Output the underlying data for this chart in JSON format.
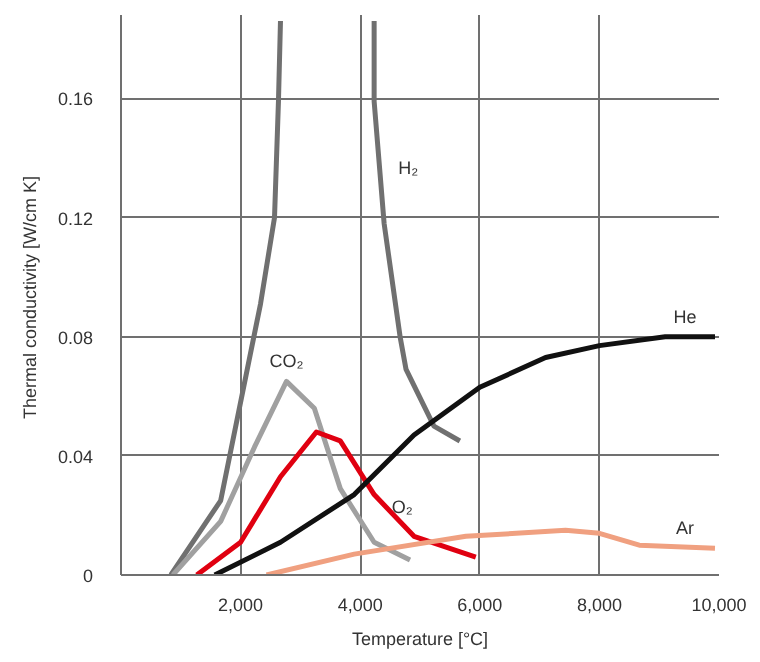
{
  "chart_data": {
    "type": "line",
    "xlabel": "Temperature [°C]",
    "ylabel": "Thermal conductivity  [W/cm K]",
    "xlim": [
      0,
      10000
    ],
    "ylim": [
      0,
      0.188
    ],
    "xticks": [
      {
        "value": 2000,
        "label": "2,000"
      },
      {
        "value": 4000,
        "label": "4,000"
      },
      {
        "value": 6000,
        "label": "6,000"
      },
      {
        "value": 8000,
        "label": "8,000"
      },
      {
        "value": 10000,
        "label": "10,000"
      }
    ],
    "yticks": [
      0,
      0.04,
      0.08,
      0.12,
      0.16
    ],
    "grid": true,
    "line_style": "solid",
    "series": [
      {
        "name": "H₂",
        "color": "#707070",
        "x": [
          833,
          1667,
          2333,
          2567,
          2633,
          2667,
          3400,
          4233,
          4233,
          4400,
          4667,
          4767,
          5233,
          5667
        ],
        "values": [
          0,
          0.025,
          0.091,
          0.12,
          0.159,
          0.186,
          null,
          0.186,
          0.159,
          0.118,
          0.08,
          0.069,
          0.05,
          0.045
        ]
      },
      {
        "name": "CO₂",
        "color": "#a0a0a0",
        "x": [
          867,
          1667,
          2233,
          2767,
          3233,
          3667,
          4233,
          4833
        ],
        "values": [
          0,
          0.018,
          0.043,
          0.065,
          0.056,
          0.029,
          0.011,
          0.005
        ]
      },
      {
        "name": "O₂",
        "color": "#e00010",
        "x": [
          1267,
          2000,
          2667,
          3267,
          3667,
          4233,
          4900,
          5933
        ],
        "values": [
          0,
          0.011,
          0.033,
          0.048,
          0.045,
          0.027,
          0.013,
          0.006
        ]
      },
      {
        "name": "He",
        "color": "#111111",
        "x": [
          1567,
          2667,
          3900,
          4900,
          6000,
          7100,
          8000,
          9100,
          9933
        ],
        "values": [
          0,
          0.011,
          0.027,
          0.047,
          0.063,
          0.073,
          0.077,
          0.08,
          0.08
        ]
      },
      {
        "name": "Ar",
        "color": "#f0a080",
        "x": [
          2433,
          3900,
          5767,
          7433,
          8000,
          8667,
          9933
        ],
        "values": [
          0,
          0.007,
          0.013,
          0.015,
          0.014,
          0.01,
          0.009
        ]
      }
    ]
  }
}
